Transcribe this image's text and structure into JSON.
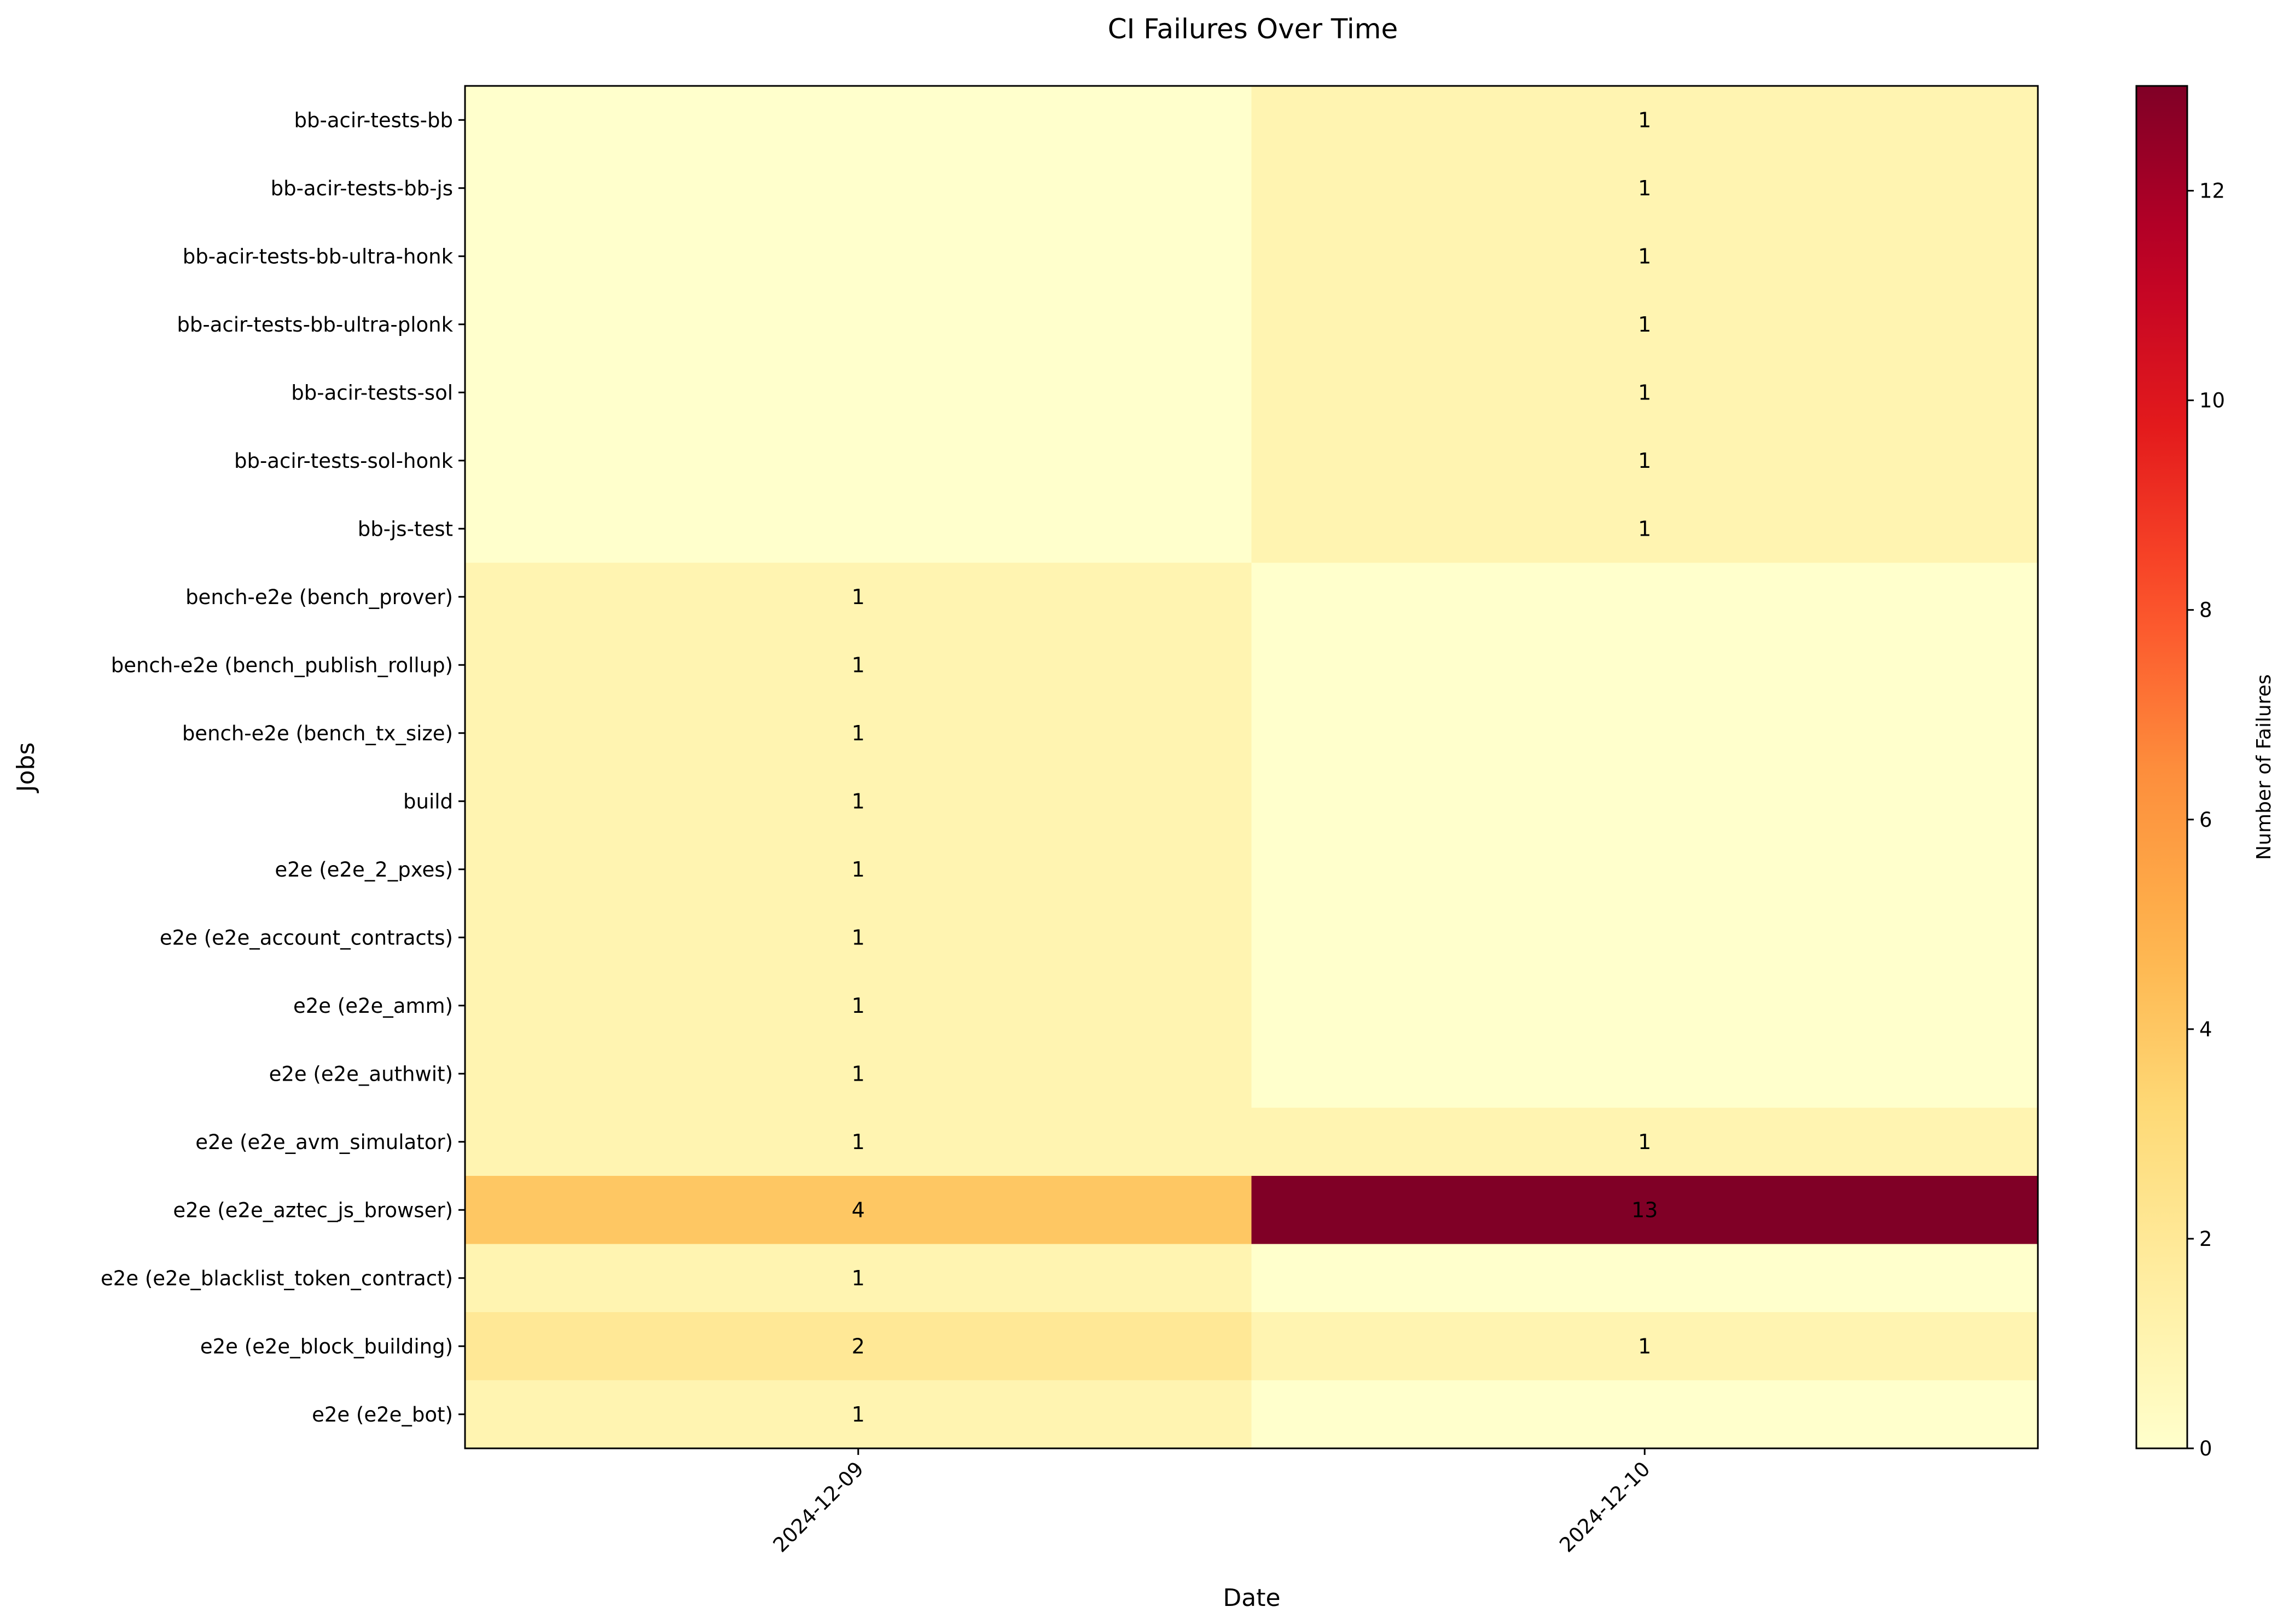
{
  "chart_data": {
    "type": "heatmap",
    "title": "CI Failures Over Time",
    "xlabel": "Date",
    "ylabel": "Jobs",
    "colorbar_label": "Number of Failures",
    "colormap": "YlOrRd",
    "color_range": [
      0,
      13
    ],
    "colorbar_ticks": [
      0,
      2,
      4,
      6,
      8,
      10,
      12
    ],
    "x": [
      "2024-12-09",
      "2024-12-10"
    ],
    "y": [
      "bb-acir-tests-bb",
      "bb-acir-tests-bb-js",
      "bb-acir-tests-bb-ultra-honk",
      "bb-acir-tests-bb-ultra-plonk",
      "bb-acir-tests-sol",
      "bb-acir-tests-sol-honk",
      "bb-js-test",
      "bench-e2e (bench_prover)",
      "bench-e2e (bench_publish_rollup)",
      "bench-e2e (bench_tx_size)",
      "build",
      "e2e (e2e_2_pxes)",
      "e2e (e2e_account_contracts)",
      "e2e (e2e_amm)",
      "e2e (e2e_authwit)",
      "e2e (e2e_avm_simulator)",
      "e2e (e2e_aztec_js_browser)",
      "e2e (e2e_blacklist_token_contract)",
      "e2e (e2e_block_building)",
      "e2e (e2e_bot)"
    ],
    "values": [
      [
        0,
        1
      ],
      [
        0,
        1
      ],
      [
        0,
        1
      ],
      [
        0,
        1
      ],
      [
        0,
        1
      ],
      [
        0,
        1
      ],
      [
        0,
        1
      ],
      [
        1,
        0
      ],
      [
        1,
        0
      ],
      [
        1,
        0
      ],
      [
        1,
        0
      ],
      [
        1,
        0
      ],
      [
        1,
        0
      ],
      [
        1,
        0
      ],
      [
        1,
        0
      ],
      [
        1,
        1
      ],
      [
        4,
        13
      ],
      [
        1,
        0
      ],
      [
        2,
        1
      ],
      [
        1,
        0
      ]
    ],
    "annotations": "non-zero cells labeled with value"
  }
}
